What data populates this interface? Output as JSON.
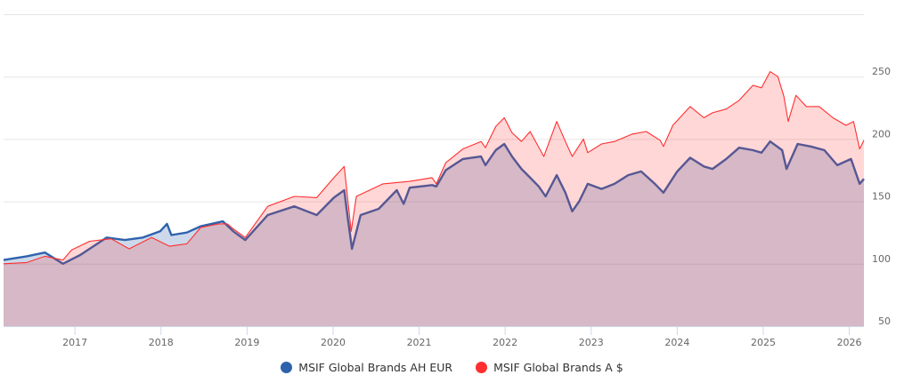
{
  "chart_data": {
    "type": "area",
    "title": "",
    "xlabel": "",
    "ylabel": "",
    "xlim": [
      2016.17,
      2026.17
    ],
    "ylim": [
      50,
      300
    ],
    "x_ticks": [
      "2017",
      "2018",
      "2019",
      "2020",
      "2021",
      "2022",
      "2023",
      "2024",
      "2025",
      "2026"
    ],
    "y_ticks": [
      "50",
      "100",
      "150",
      "200",
      "250"
    ],
    "y_gridlines": [
      50,
      100,
      150,
      200,
      250,
      300
    ],
    "grid": true,
    "legend_position": "bottom",
    "series": [
      {
        "name": "MSIF Global Brands AH EUR",
        "color": "#2f62ad",
        "x": [
          2016.17,
          2016.44,
          2016.65,
          2016.86,
          2017.06,
          2017.37,
          2017.58,
          2017.79,
          2017.99,
          2018.07,
          2018.12,
          2018.3,
          2018.46,
          2018.72,
          2018.84,
          2018.98,
          2019.24,
          2019.55,
          2019.81,
          2020.01,
          2020.13,
          2020.17,
          2020.22,
          2020.32,
          2020.53,
          2020.74,
          2020.82,
          2020.89,
          2021.15,
          2021.2,
          2021.31,
          2021.51,
          2021.72,
          2021.77,
          2021.89,
          2021.99,
          2022.08,
          2022.19,
          2022.29,
          2022.39,
          2022.47,
          2022.6,
          2022.7,
          2022.78,
          2022.86,
          2022.96,
          2023.12,
          2023.27,
          2023.43,
          2023.58,
          2023.74,
          2023.84,
          2024.0,
          2024.15,
          2024.31,
          2024.41,
          2024.57,
          2024.72,
          2024.88,
          2024.98,
          2025.08,
          2025.22,
          2025.27,
          2025.4,
          2025.55,
          2025.71,
          2025.86,
          2026.02,
          2026.12,
          2026.17
        ],
        "values": [
          103,
          106,
          109,
          100,
          107,
          121,
          119,
          121,
          126,
          132,
          123,
          125,
          130,
          134,
          126,
          119,
          139,
          146,
          139,
          153,
          159,
          137,
          112,
          139,
          144,
          159,
          148,
          161,
          163,
          162,
          175,
          184,
          186,
          179,
          191,
          196,
          186,
          176,
          169,
          162,
          154,
          171,
          157,
          142,
          150,
          164,
          160,
          164,
          171,
          174,
          164,
          157,
          174,
          185,
          178,
          176,
          184,
          193,
          191,
          189,
          198,
          191,
          176,
          196,
          194,
          191,
          179,
          184,
          164,
          168
        ]
      },
      {
        "name": "MSIF Global Brands A $",
        "color": "#ff2f2f",
        "x": [
          2016.17,
          2016.44,
          2016.65,
          2016.86,
          2016.96,
          2017.17,
          2017.42,
          2017.63,
          2017.89,
          2018.1,
          2018.3,
          2018.46,
          2018.67,
          2018.77,
          2018.84,
          2018.98,
          2019.24,
          2019.55,
          2019.81,
          2020.01,
          2020.13,
          2020.21,
          2020.27,
          2020.58,
          2020.89,
          2021.15,
          2021.2,
          2021.31,
          2021.51,
          2021.72,
          2021.77,
          2021.89,
          2021.99,
          2022.08,
          2022.19,
          2022.29,
          2022.45,
          2022.6,
          2022.7,
          2022.78,
          2022.91,
          2022.96,
          2023.12,
          2023.27,
          2023.48,
          2023.64,
          2023.8,
          2023.84,
          2023.95,
          2024.15,
          2024.31,
          2024.41,
          2024.57,
          2024.72,
          2024.88,
          2024.98,
          2025.08,
          2025.17,
          2025.24,
          2025.29,
          2025.38,
          2025.5,
          2025.65,
          2025.81,
          2025.96,
          2026.05,
          2026.12,
          2026.17
        ],
        "values": [
          100,
          101,
          106,
          103,
          111,
          118,
          120,
          112,
          121,
          114,
          116,
          129,
          132,
          132,
          128,
          121,
          146,
          154,
          153,
          169,
          178,
          126,
          154,
          164,
          166,
          169,
          164,
          181,
          192,
          198,
          193,
          210,
          217,
          205,
          198,
          206,
          186,
          214,
          198,
          186,
          200,
          189,
          196,
          198,
          204,
          206,
          199,
          194,
          211,
          226,
          217,
          221,
          224,
          231,
          243,
          241,
          254,
          250,
          234,
          214,
          235,
          226,
          226,
          217,
          211,
          214,
          192,
          199
        ]
      }
    ]
  },
  "legend": {
    "items": [
      {
        "label": "MSIF Global Brands AH EUR",
        "color": "#2f62ad"
      },
      {
        "label": "MSIF Global Brands A $",
        "color": "#ff2f2f"
      }
    ]
  }
}
